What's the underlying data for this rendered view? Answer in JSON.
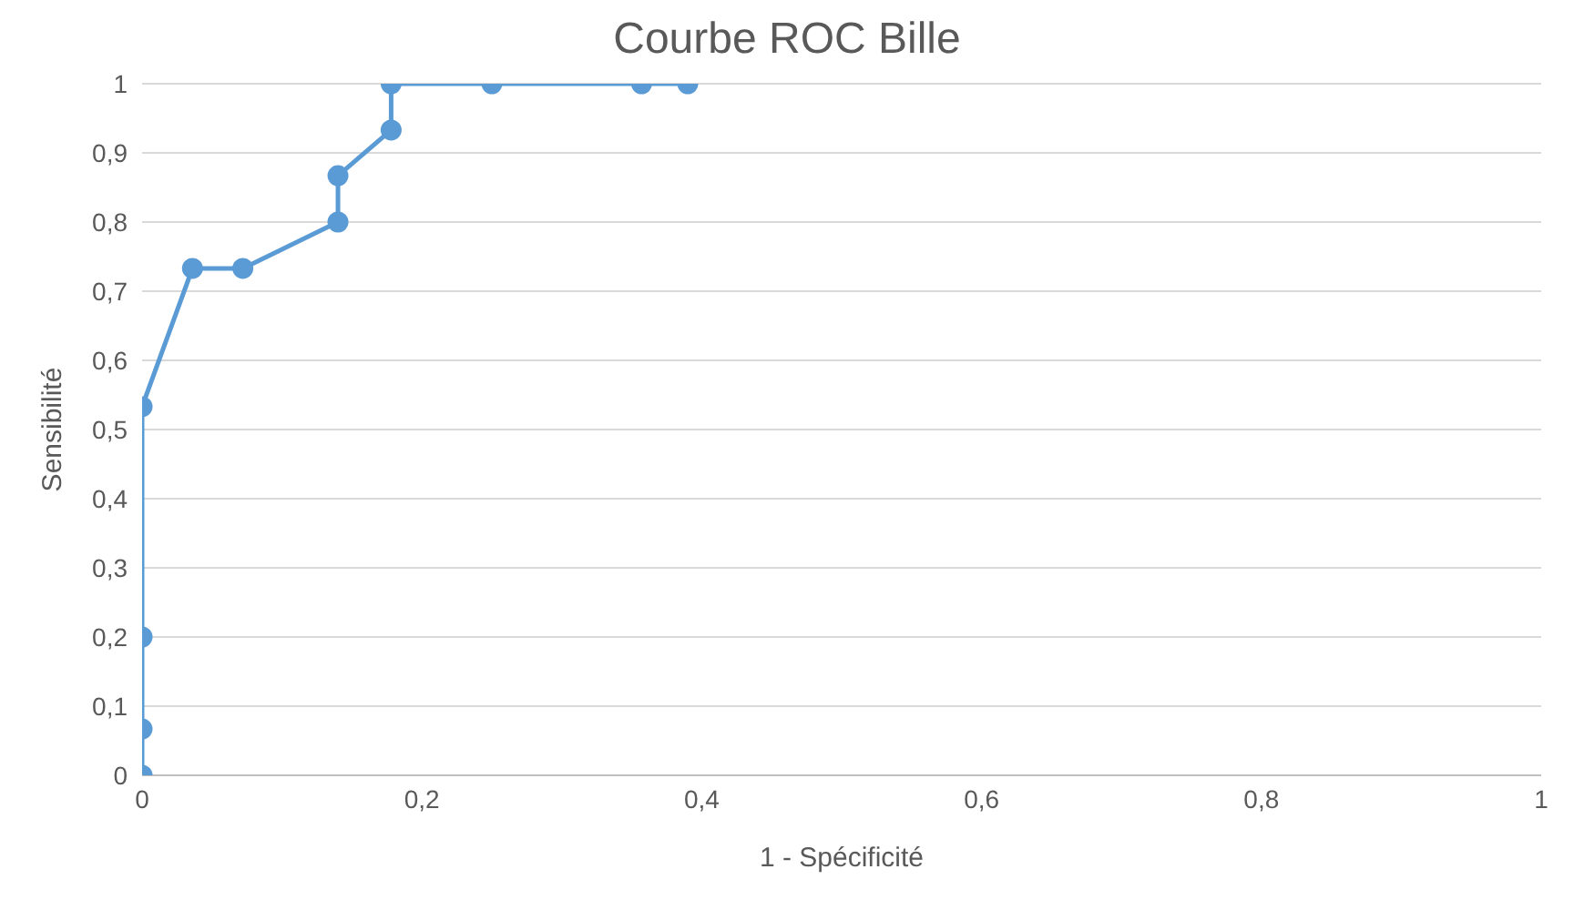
{
  "chart_data": {
    "type": "line",
    "title": "Courbe ROC Bille",
    "xlabel": "1 - Spécificité",
    "ylabel": "Sensibilité",
    "series": [
      {
        "color": "#5b9bd5",
        "x": [
          0,
          0,
          0,
          0,
          0.036,
          0.072,
          0.14,
          0.14,
          0.178,
          0.178,
          0.25,
          0.357,
          0.39
        ],
        "values": [
          0,
          0.067,
          0.2,
          0.533,
          0.733,
          0.733,
          0.8,
          0.867,
          0.933,
          1,
          1,
          1,
          1
        ]
      }
    ],
    "xlim": [
      0,
      1
    ],
    "xticks": [
      0,
      {
        "value": 0.2,
        "label": "0,2"
      },
      {
        "value": 0.4,
        "label": "0,4"
      },
      {
        "value": 0.6,
        "label": "0,6"
      },
      {
        "value": 0.8,
        "label": "0,8"
      },
      1
    ],
    "ylim": [
      0,
      1
    ],
    "yticks": [
      0,
      {
        "value": 0.1,
        "label": "0,1"
      },
      {
        "value": 0.2,
        "label": "0,2"
      },
      {
        "value": 0.3,
        "label": "0,3"
      },
      {
        "value": 0.4,
        "label": "0,4"
      },
      {
        "value": 0.5,
        "label": "0,5"
      },
      {
        "value": 0.6,
        "label": "0,6"
      },
      {
        "value": 0.7,
        "label": "0,7"
      },
      {
        "value": 0.8,
        "label": "0,8"
      },
      {
        "value": 0.9,
        "label": "0,9"
      },
      1
    ],
    "grid": "y",
    "legend": false,
    "marker": "circle",
    "line_style": "solid"
  }
}
